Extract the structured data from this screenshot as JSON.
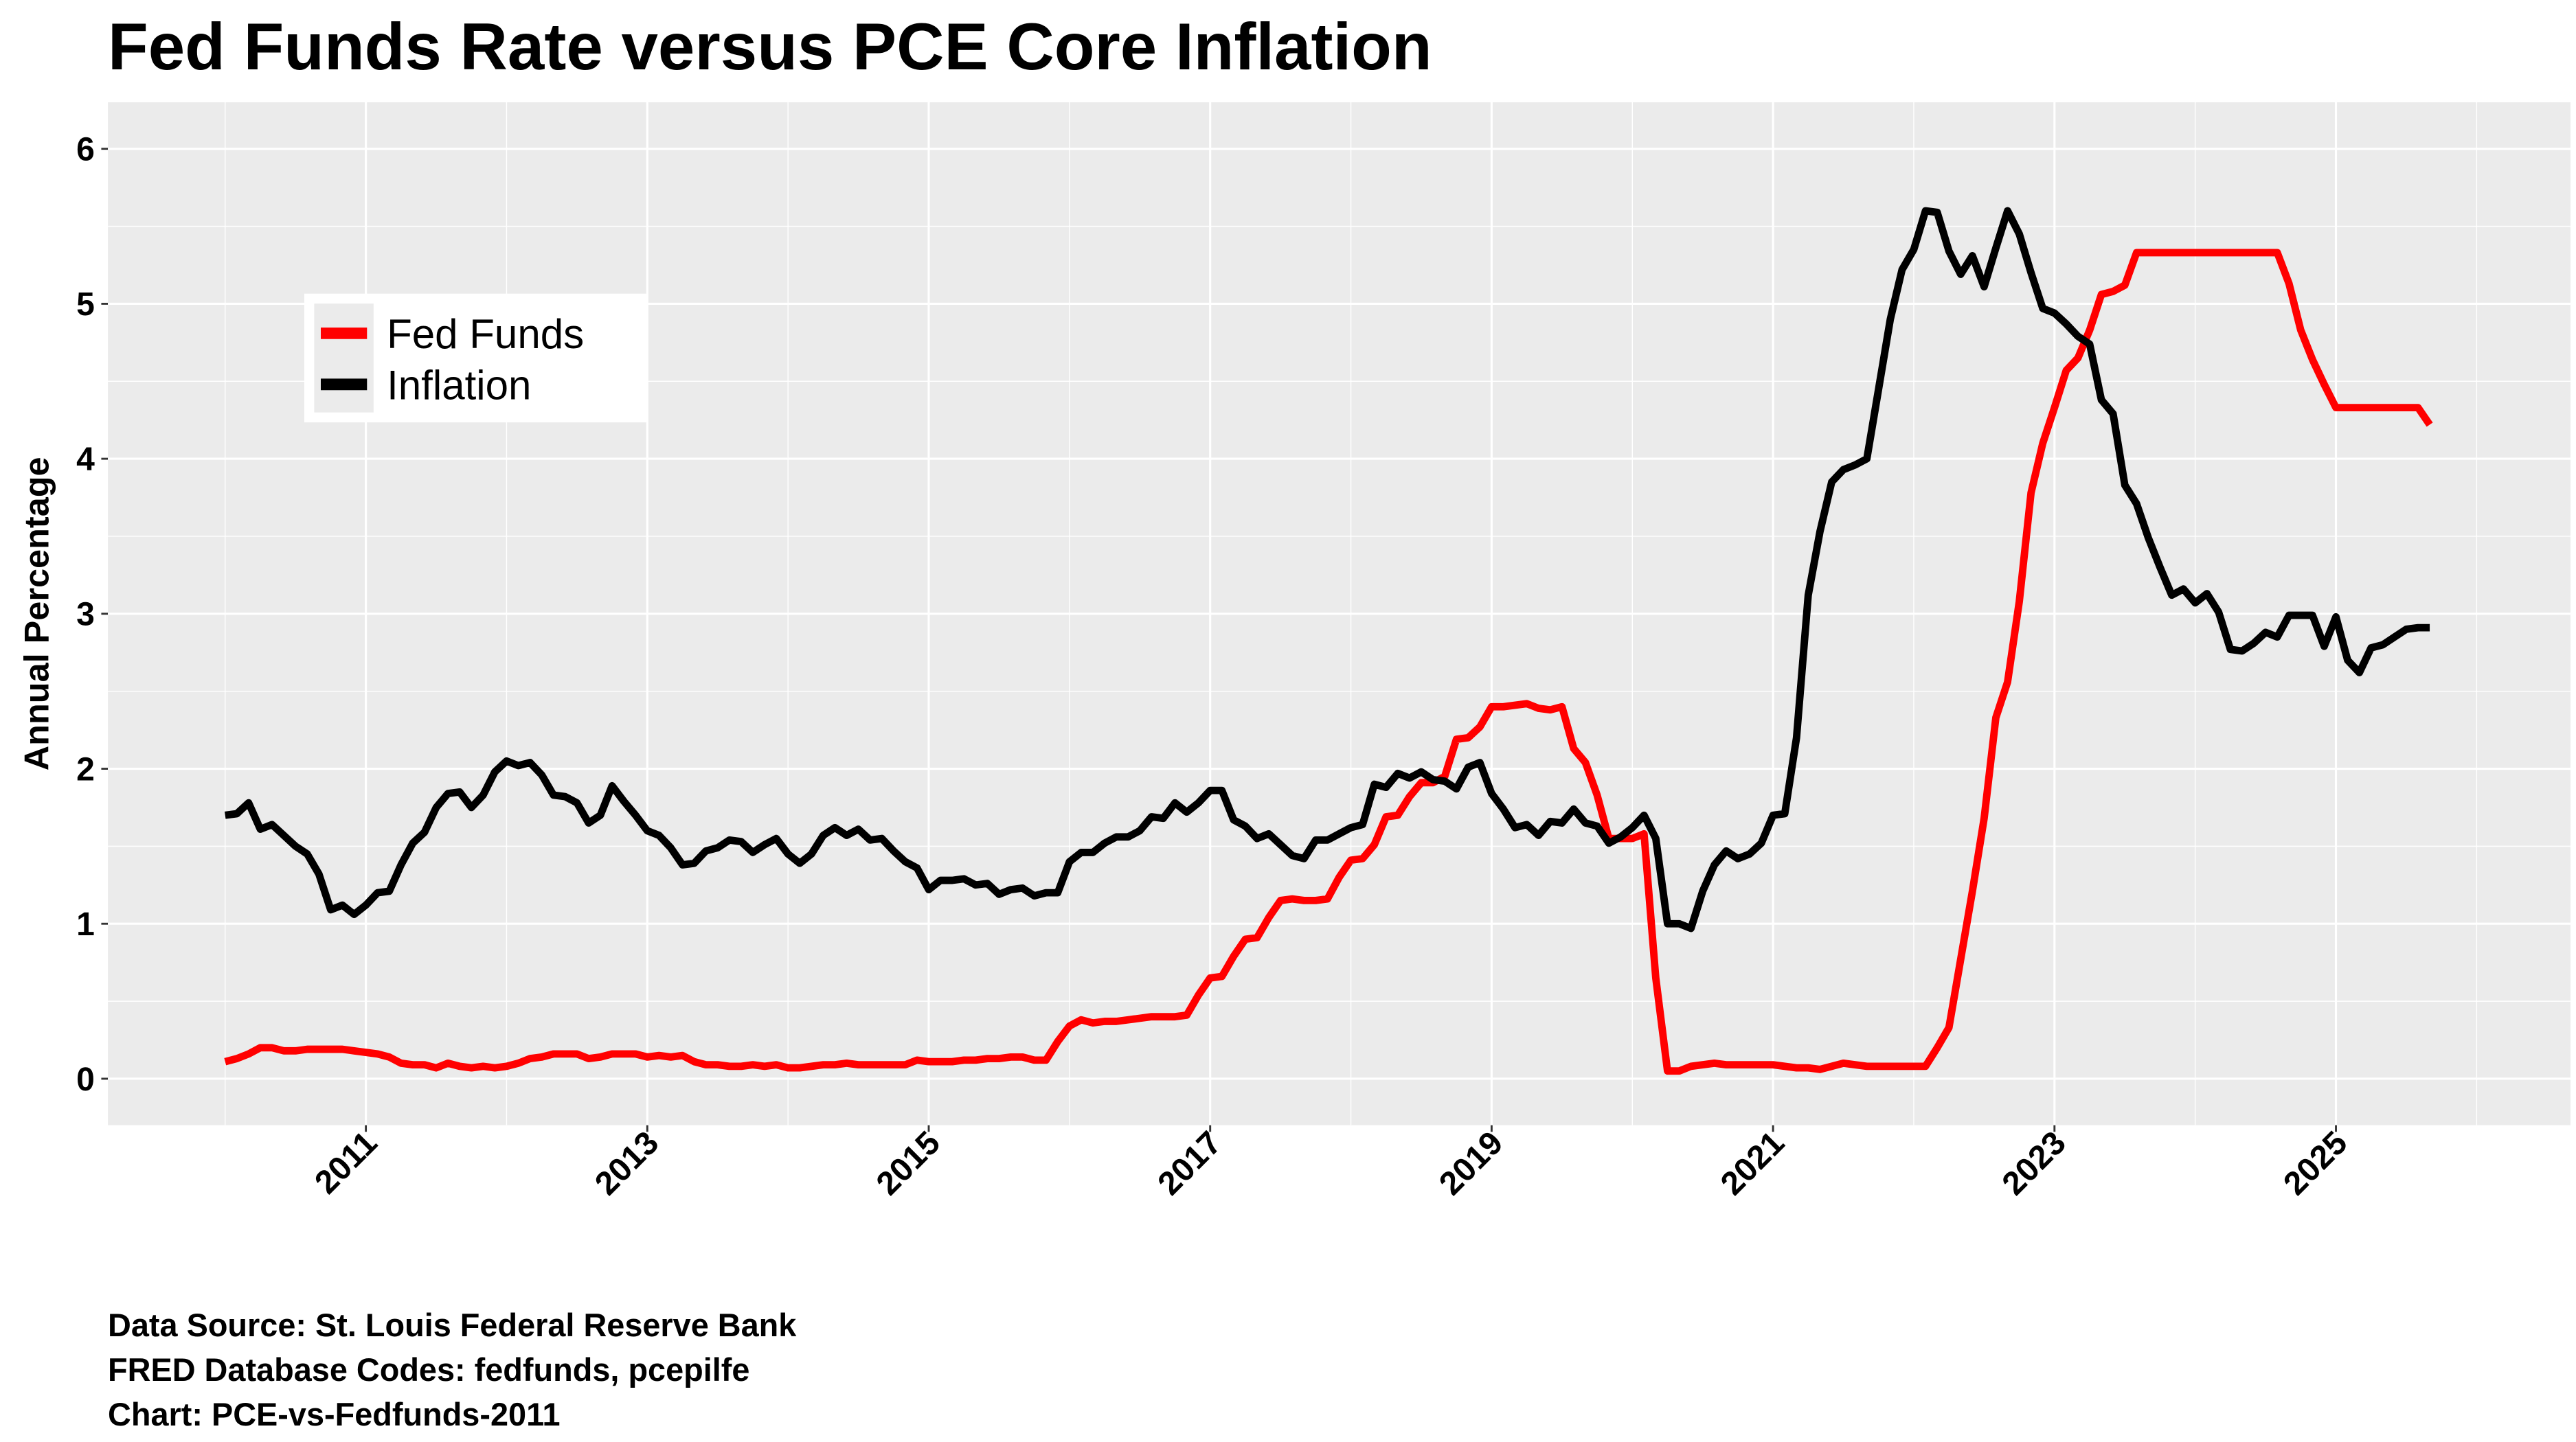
{
  "chart_data": {
    "type": "line",
    "title": "Fed Funds Rate versus PCE Core Inflation",
    "xlabel": "",
    "ylabel": "Annual Percentage",
    "xlim": [
      "2009-03",
      "2026-09"
    ],
    "ylim": [
      -0.3,
      6.3
    ],
    "x_ticks": [
      "2011",
      "2013",
      "2015",
      "2017",
      "2019",
      "2021",
      "2023",
      "2025"
    ],
    "y_ticks": [
      0,
      1,
      2,
      3,
      4,
      5,
      6
    ],
    "grid": true,
    "legend_placement": "top-left",
    "x": [
      "2010-01",
      "2010-02",
      "2010-03",
      "2010-04",
      "2010-05",
      "2010-06",
      "2010-07",
      "2010-08",
      "2010-09",
      "2010-10",
      "2010-11",
      "2010-12",
      "2011-01",
      "2011-02",
      "2011-03",
      "2011-04",
      "2011-05",
      "2011-06",
      "2011-07",
      "2011-08",
      "2011-09",
      "2011-10",
      "2011-11",
      "2011-12",
      "2012-01",
      "2012-02",
      "2012-03",
      "2012-04",
      "2012-05",
      "2012-06",
      "2012-07",
      "2012-08",
      "2012-09",
      "2012-10",
      "2012-11",
      "2012-12",
      "2013-01",
      "2013-02",
      "2013-03",
      "2013-04",
      "2013-05",
      "2013-06",
      "2013-07",
      "2013-08",
      "2013-09",
      "2013-10",
      "2013-11",
      "2013-12",
      "2014-01",
      "2014-02",
      "2014-03",
      "2014-04",
      "2014-05",
      "2014-06",
      "2014-07",
      "2014-08",
      "2014-09",
      "2014-10",
      "2014-11",
      "2014-12",
      "2015-01",
      "2015-02",
      "2015-03",
      "2015-04",
      "2015-05",
      "2015-06",
      "2015-07",
      "2015-08",
      "2015-09",
      "2015-10",
      "2015-11",
      "2015-12",
      "2016-01",
      "2016-02",
      "2016-03",
      "2016-04",
      "2016-05",
      "2016-06",
      "2016-07",
      "2016-08",
      "2016-09",
      "2016-10",
      "2016-11",
      "2016-12",
      "2017-01",
      "2017-02",
      "2017-03",
      "2017-04",
      "2017-05",
      "2017-06",
      "2017-07",
      "2017-08",
      "2017-09",
      "2017-10",
      "2017-11",
      "2017-12",
      "2018-01",
      "2018-02",
      "2018-03",
      "2018-04",
      "2018-05",
      "2018-06",
      "2018-07",
      "2018-08",
      "2018-09",
      "2018-10",
      "2018-11",
      "2018-12",
      "2019-01",
      "2019-02",
      "2019-03",
      "2019-04",
      "2019-05",
      "2019-06",
      "2019-07",
      "2019-08",
      "2019-09",
      "2019-10",
      "2019-11",
      "2019-12",
      "2020-01",
      "2020-02",
      "2020-03",
      "2020-04",
      "2020-05",
      "2020-06",
      "2020-07",
      "2020-08",
      "2020-09",
      "2020-10",
      "2020-11",
      "2020-12",
      "2021-01",
      "2021-02",
      "2021-03",
      "2021-04",
      "2021-05",
      "2021-06",
      "2021-07",
      "2021-08",
      "2021-09",
      "2021-10",
      "2021-11",
      "2021-12",
      "2022-01",
      "2022-02",
      "2022-03",
      "2022-04",
      "2022-05",
      "2022-06",
      "2022-07",
      "2022-08",
      "2022-09",
      "2022-10",
      "2022-11",
      "2022-12",
      "2023-01",
      "2023-02",
      "2023-03",
      "2023-04",
      "2023-05",
      "2023-06",
      "2023-07",
      "2023-08",
      "2023-09",
      "2023-10",
      "2023-11",
      "2023-12",
      "2024-01",
      "2024-02",
      "2024-03",
      "2024-04",
      "2024-05",
      "2024-06",
      "2024-07",
      "2024-08",
      "2024-09",
      "2024-10",
      "2024-11",
      "2024-12",
      "2025-01",
      "2025-02",
      "2025-03",
      "2025-04",
      "2025-05",
      "2025-06",
      "2025-07",
      "2025-08",
      "2025-09"
    ],
    "series": [
      {
        "name": "Fed Funds",
        "color": "#ff0000",
        "values": [
          0.11,
          0.13,
          0.16,
          0.2,
          0.2,
          0.18,
          0.18,
          0.19,
          0.19,
          0.19,
          0.19,
          0.18,
          0.17,
          0.16,
          0.14,
          0.1,
          0.09,
          0.09,
          0.07,
          0.1,
          0.08,
          0.07,
          0.08,
          0.07,
          0.08,
          0.1,
          0.13,
          0.14,
          0.16,
          0.16,
          0.16,
          0.13,
          0.14,
          0.16,
          0.16,
          0.16,
          0.14,
          0.15,
          0.14,
          0.15,
          0.11,
          0.09,
          0.09,
          0.08,
          0.08,
          0.09,
          0.08,
          0.09,
          0.07,
          0.07,
          0.08,
          0.09,
          0.09,
          0.1,
          0.09,
          0.09,
          0.09,
          0.09,
          0.09,
          0.12,
          0.11,
          0.11,
          0.11,
          0.12,
          0.12,
          0.13,
          0.13,
          0.14,
          0.14,
          0.12,
          0.12,
          0.24,
          0.34,
          0.38,
          0.36,
          0.37,
          0.37,
          0.38,
          0.39,
          0.4,
          0.4,
          0.4,
          0.41,
          0.54,
          0.65,
          0.66,
          0.79,
          0.9,
          0.91,
          1.04,
          1.15,
          1.16,
          1.15,
          1.15,
          1.16,
          1.3,
          1.41,
          1.42,
          1.51,
          1.69,
          1.7,
          1.82,
          1.91,
          1.91,
          1.95,
          2.19,
          2.2,
          2.27,
          2.4,
          2.4,
          2.41,
          2.42,
          2.39,
          2.38,
          2.4,
          2.13,
          2.04,
          1.83,
          1.55,
          1.55,
          1.55,
          1.58,
          0.65,
          0.05,
          0.05,
          0.08,
          0.09,
          0.1,
          0.09,
          0.09,
          0.09,
          0.09,
          0.09,
          0.08,
          0.07,
          0.07,
          0.06,
          0.08,
          0.1,
          0.09,
          0.08,
          0.08,
          0.08,
          0.08,
          0.08,
          0.08,
          0.2,
          0.33,
          0.77,
          1.21,
          1.68,
          2.33,
          2.56,
          3.08,
          3.78,
          4.1,
          4.33,
          4.57,
          4.65,
          4.83,
          5.06,
          5.08,
          5.12,
          5.33,
          5.33,
          5.33,
          5.33,
          5.33,
          5.33,
          5.33,
          5.33,
          5.33,
          5.33,
          5.33,
          5.33,
          5.33,
          5.13,
          4.83,
          4.64,
          4.48,
          4.33,
          4.33,
          4.33,
          4.33,
          4.33,
          4.33,
          4.33,
          4.33,
          4.22
        ]
      },
      {
        "name": "Inflation",
        "color": "#000000",
        "values": [
          1.7,
          1.71,
          1.78,
          1.61,
          1.64,
          1.57,
          1.5,
          1.45,
          1.32,
          1.09,
          1.12,
          1.06,
          1.12,
          1.2,
          1.21,
          1.38,
          1.52,
          1.59,
          1.75,
          1.84,
          1.85,
          1.75,
          1.83,
          1.98,
          2.05,
          2.02,
          2.04,
          1.96,
          1.83,
          1.82,
          1.78,
          1.65,
          1.7,
          1.89,
          1.79,
          1.7,
          1.6,
          1.57,
          1.49,
          1.38,
          1.39,
          1.47,
          1.49,
          1.54,
          1.53,
          1.46,
          1.51,
          1.55,
          1.45,
          1.39,
          1.45,
          1.57,
          1.62,
          1.57,
          1.61,
          1.54,
          1.55,
          1.47,
          1.4,
          1.36,
          1.22,
          1.28,
          1.28,
          1.29,
          1.25,
          1.26,
          1.19,
          1.22,
          1.23,
          1.18,
          1.2,
          1.2,
          1.4,
          1.46,
          1.46,
          1.52,
          1.56,
          1.56,
          1.6,
          1.69,
          1.68,
          1.78,
          1.72,
          1.78,
          1.86,
          1.86,
          1.67,
          1.63,
          1.55,
          1.58,
          1.51,
          1.44,
          1.42,
          1.54,
          1.54,
          1.58,
          1.62,
          1.64,
          1.9,
          1.88,
          1.97,
          1.94,
          1.98,
          1.93,
          1.92,
          1.87,
          2.01,
          2.04,
          1.84,
          1.74,
          1.62,
          1.64,
          1.57,
          1.66,
          1.65,
          1.74,
          1.65,
          1.63,
          1.52,
          1.56,
          1.62,
          1.7,
          1.55,
          1.0,
          1.0,
          0.97,
          1.21,
          1.38,
          1.47,
          1.42,
          1.45,
          1.52,
          1.7,
          1.71,
          2.2,
          3.12,
          3.53,
          3.85,
          3.93,
          3.96,
          4.0,
          4.45,
          4.9,
          5.22,
          5.35,
          5.6,
          5.59,
          5.34,
          5.19,
          5.31,
          5.11,
          5.36,
          5.6,
          5.45,
          5.2,
          4.97,
          4.94,
          4.87,
          4.79,
          4.74,
          4.38,
          4.29,
          3.83,
          3.71,
          3.49,
          3.3,
          3.12,
          3.16,
          3.07,
          3.13,
          3.01,
          2.77,
          2.76,
          2.81,
          2.88,
          2.85,
          2.99,
          2.99,
          2.99,
          2.79,
          2.98,
          2.7,
          2.62,
          2.78,
          2.8,
          2.85,
          2.9,
          2.91,
          2.91
        ]
      }
    ],
    "caption": [
      "Data Source: St. Louis Federal Reserve Bank",
      "FRED Database Codes: fedfunds, pcepilfe",
      "Chart: PCE-vs-Fedfunds-2011"
    ],
    "panel_background": "#ebebeb",
    "grid_color": "#ffffff"
  }
}
